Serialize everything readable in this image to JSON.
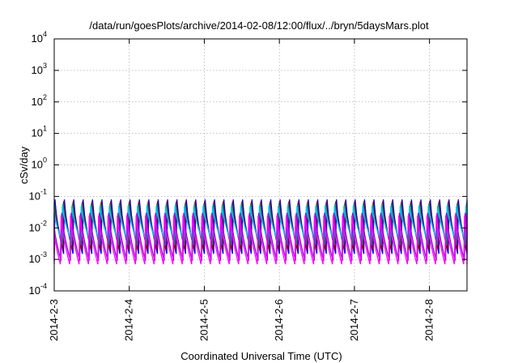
{
  "chart_data": {
    "type": "line",
    "title": "/data/run/goesPlots/archive/2014-02-08/12:00/flux/../bryn/5daysMars.plot",
    "xlabel": "Coordinated Universal Time (UTC)",
    "ylabel": "cSv/day",
    "yscale": "log",
    "ylim": [
      0.0001,
      10000
    ],
    "yticks": [
      {
        "base": "10",
        "exp": "-4"
      },
      {
        "base": "10",
        "exp": "-3"
      },
      {
        "base": "10",
        "exp": "-2"
      },
      {
        "base": "10",
        "exp": "-1"
      },
      {
        "base": "10",
        "exp": "0"
      },
      {
        "base": "10",
        "exp": "1"
      },
      {
        "base": "10",
        "exp": "2"
      },
      {
        "base": "10",
        "exp": "3"
      },
      {
        "base": "10",
        "exp": "4"
      }
    ],
    "xlim": [
      "2014-02-03",
      "2014-02-08 12:00"
    ],
    "xticks": [
      "2014-2-3",
      "2014-2-4",
      "2014-2-5",
      "2014-2-6",
      "2014-2-7",
      "2014-2-8"
    ],
    "grid": true,
    "legend": "none",
    "pattern": {
      "period_hours": 3,
      "description": "repeating sawtooth: sharp rise to peak, decay to trough"
    },
    "series": [
      {
        "color": "#0000ee",
        "peak": 0.08,
        "trough": 0.0015
      },
      {
        "color": "#8b0000",
        "peak": 0.07,
        "trough": 0.002
      },
      {
        "color": "#008b8b",
        "peak": 0.06,
        "trough": 0.003
      },
      {
        "color": "#00bfff",
        "peak": 0.05,
        "trough": 0.004
      },
      {
        "color": "#9400d3",
        "peak": 0.03,
        "trough": 0.0009
      },
      {
        "color": "#ff00ff",
        "peak": 0.025,
        "trough": 0.0007
      }
    ]
  }
}
